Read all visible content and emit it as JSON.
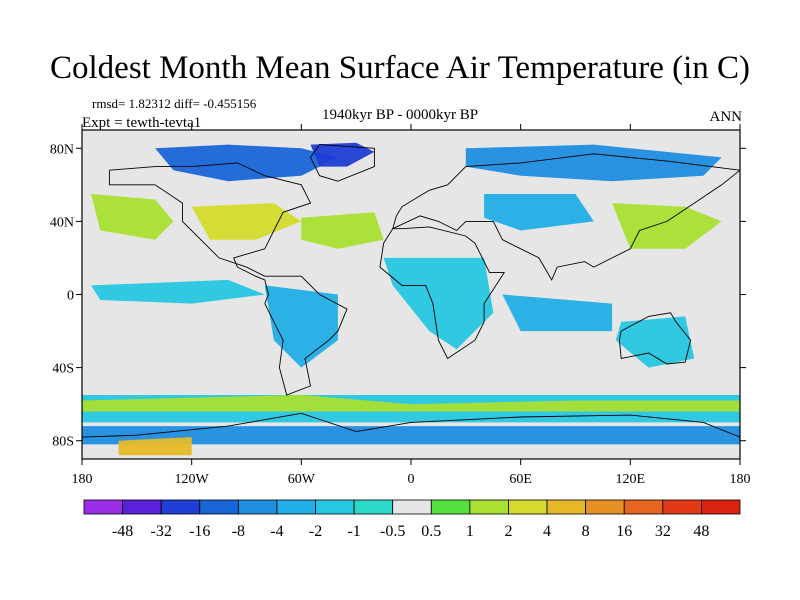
{
  "title": "Coldest Month Mean Surface Air Temperature (in C)",
  "stats": "rmsd= 1.82312 diff= -0.455156",
  "experiment": "Expt = tewth-tevta1",
  "period": "1940kyr BP - 0000kyr BP",
  "season": "ANN",
  "chart_data": {
    "type": "heatmap",
    "projection": "cylindrical-equidistant",
    "lon_range": [
      -180,
      180
    ],
    "lat_range": [
      -90,
      90
    ],
    "x_ticks": [
      "180",
      "120W",
      "60W",
      "0",
      "60E",
      "120E",
      "180"
    ],
    "y_ticks": [
      "80N",
      "40N",
      "0",
      "40S",
      "80S"
    ],
    "colorbar": {
      "labels": [
        "-48",
        "-32",
        "-16",
        "-8",
        "-4",
        "-2",
        "-1",
        "-0.5",
        "0.5",
        "1",
        "2",
        "4",
        "8",
        "16",
        "32",
        "48"
      ],
      "colors": [
        "#9a2ce6",
        "#5a21d9",
        "#1e3ed6",
        "#1966d8",
        "#1f8ee0",
        "#22aee6",
        "#27c6e2",
        "#2cd9c9",
        "#e6e6e6",
        "#55df3c",
        "#a9e032",
        "#d4db2c",
        "#e6b827",
        "#e69126",
        "#e6661f",
        "#e23a17",
        "#d9220f"
      ]
    }
  },
  "regions": [
    {
      "name": "arctic-canada-cold",
      "color": "#1966d8",
      "path": [
        [
          -140,
          80
        ],
        [
          -100,
          82
        ],
        [
          -60,
          80
        ],
        [
          -40,
          75
        ],
        [
          -60,
          65
        ],
        [
          -100,
          62
        ],
        [
          -130,
          68
        ]
      ]
    },
    {
      "name": "greenland-cold",
      "color": "#1e3ed6",
      "path": [
        [
          -55,
          82
        ],
        [
          -30,
          83
        ],
        [
          -20,
          78
        ],
        [
          -35,
          70
        ],
        [
          -50,
          70
        ]
      ]
    },
    {
      "name": "siberia-cool",
      "color": "#1f8ee0",
      "path": [
        [
          30,
          80
        ],
        [
          100,
          82
        ],
        [
          170,
          75
        ],
        [
          160,
          65
        ],
        [
          110,
          62
        ],
        [
          60,
          65
        ],
        [
          30,
          70
        ]
      ]
    },
    {
      "name": "pacific-north-warm",
      "color": "#a9e032",
      "path": [
        [
          -175,
          55
        ],
        [
          -140,
          52
        ],
        [
          -130,
          40
        ],
        [
          -140,
          30
        ],
        [
          -170,
          35
        ]
      ]
    },
    {
      "name": "north-america-warm",
      "color": "#d4db2c",
      "path": [
        [
          -120,
          48
        ],
        [
          -75,
          50
        ],
        [
          -60,
          40
        ],
        [
          -85,
          30
        ],
        [
          -110,
          30
        ]
      ]
    },
    {
      "name": "atlantic-warm",
      "color": "#a9e032",
      "path": [
        [
          -60,
          42
        ],
        [
          -20,
          45
        ],
        [
          -15,
          30
        ],
        [
          -40,
          25
        ],
        [
          -60,
          30
        ]
      ]
    },
    {
      "name": "asia-east-warm",
      "color": "#a9e032",
      "path": [
        [
          110,
          50
        ],
        [
          150,
          48
        ],
        [
          170,
          40
        ],
        [
          150,
          25
        ],
        [
          120,
          25
        ]
      ]
    },
    {
      "name": "central-asia-cool",
      "color": "#22aee6",
      "path": [
        [
          40,
          55
        ],
        [
          90,
          55
        ],
        [
          100,
          40
        ],
        [
          60,
          35
        ],
        [
          40,
          42
        ]
      ]
    },
    {
      "name": "tropical-pacific-cool",
      "color": "#27c6e2",
      "path": [
        [
          -175,
          5
        ],
        [
          -100,
          8
        ],
        [
          -80,
          0
        ],
        [
          -120,
          -5
        ],
        [
          -170,
          -3
        ]
      ]
    },
    {
      "name": "south-america-cool",
      "color": "#22aee6",
      "path": [
        [
          -80,
          5
        ],
        [
          -40,
          0
        ],
        [
          -40,
          -25
        ],
        [
          -60,
          -40
        ],
        [
          -75,
          -25
        ]
      ]
    },
    {
      "name": "africa-cool",
      "color": "#27c6e2",
      "path": [
        [
          -15,
          20
        ],
        [
          40,
          20
        ],
        [
          45,
          -10
        ],
        [
          25,
          -30
        ],
        [
          10,
          -20
        ],
        [
          -10,
          5
        ]
      ]
    },
    {
      "name": "indian-ocean-cool",
      "color": "#22aee6",
      "path": [
        [
          50,
          0
        ],
        [
          110,
          -5
        ],
        [
          110,
          -20
        ],
        [
          60,
          -20
        ]
      ]
    },
    {
      "name": "australia-cool",
      "color": "#27c6e2",
      "path": [
        [
          115,
          -15
        ],
        [
          150,
          -12
        ],
        [
          155,
          -35
        ],
        [
          130,
          -40
        ],
        [
          112,
          -25
        ]
      ]
    },
    {
      "name": "southern-ocean-band",
      "color": "#27c6e2",
      "path": [
        [
          -180,
          -55
        ],
        [
          180,
          -55
        ],
        [
          180,
          -70
        ],
        [
          -180,
          -70
        ]
      ]
    },
    {
      "name": "southern-ocean-warm",
      "color": "#a9e032",
      "path": [
        [
          -180,
          -58
        ],
        [
          -60,
          -55
        ],
        [
          0,
          -60
        ],
        [
          90,
          -58
        ],
        [
          180,
          -58
        ],
        [
          180,
          -64
        ],
        [
          -180,
          -64
        ]
      ]
    },
    {
      "name": "antarctica-cool",
      "color": "#1f8ee0",
      "path": [
        [
          -180,
          -72
        ],
        [
          180,
          -72
        ],
        [
          180,
          -82
        ],
        [
          -180,
          -82
        ]
      ]
    },
    {
      "name": "antarctica-warm",
      "color": "#e6b827",
      "path": [
        [
          -160,
          -80
        ],
        [
          -120,
          -78
        ],
        [
          -120,
          -88
        ],
        [
          -160,
          -88
        ]
      ]
    }
  ],
  "coastlines": [
    [
      [
        -165,
        68
      ],
      [
        -140,
        70
      ],
      [
        -120,
        70
      ],
      [
        -95,
        72
      ],
      [
        -80,
        65
      ],
      [
        -60,
        60
      ],
      [
        -55,
        50
      ],
      [
        -70,
        45
      ],
      [
        -75,
        35
      ],
      [
        -80,
        25
      ],
      [
        -97,
        20
      ],
      [
        -95,
        15
      ],
      [
        -85,
        10
      ],
      [
        -80,
        8
      ],
      [
        -78,
        0
      ],
      [
        -80,
        -5
      ],
      [
        -75,
        -15
      ],
      [
        -70,
        -25
      ],
      [
        -72,
        -40
      ],
      [
        -68,
        -55
      ],
      [
        -55,
        -50
      ],
      [
        -58,
        -35
      ],
      [
        -45,
        -25
      ],
      [
        -40,
        -20
      ],
      [
        -35,
        -8
      ],
      [
        -50,
        0
      ],
      [
        -60,
        10
      ],
      [
        -80,
        10
      ],
      [
        -90,
        15
      ],
      [
        -105,
        20
      ],
      [
        -115,
        30
      ],
      [
        -125,
        40
      ],
      [
        -125,
        50
      ],
      [
        -140,
        60
      ],
      [
        -165,
        60
      ],
      [
        -165,
        68
      ]
    ],
    [
      [
        -50,
        82
      ],
      [
        -20,
        80
      ],
      [
        -20,
        70
      ],
      [
        -40,
        62
      ],
      [
        -50,
        65
      ],
      [
        -55,
        75
      ],
      [
        -50,
        82
      ]
    ],
    [
      [
        -10,
        36
      ],
      [
        -5,
        36
      ],
      [
        10,
        37
      ],
      [
        30,
        32
      ],
      [
        35,
        28
      ],
      [
        43,
        12
      ],
      [
        51,
        12
      ],
      [
        40,
        -5
      ],
      [
        40,
        -15
      ],
      [
        35,
        -25
      ],
      [
        20,
        -35
      ],
      [
        15,
        -25
      ],
      [
        12,
        -5
      ],
      [
        8,
        5
      ],
      [
        -5,
        5
      ],
      [
        -17,
        15
      ],
      [
        -15,
        28
      ],
      [
        -10,
        36
      ]
    ],
    [
      [
        -10,
        36
      ],
      [
        -8,
        43
      ],
      [
        -5,
        48
      ],
      [
        5,
        54
      ],
      [
        10,
        57
      ],
      [
        20,
        60
      ],
      [
        30,
        70
      ],
      [
        60,
        72
      ],
      [
        100,
        77
      ],
      [
        140,
        73
      ],
      [
        180,
        68
      ],
      [
        170,
        60
      ],
      [
        155,
        50
      ],
      [
        140,
        40
      ],
      [
        125,
        35
      ],
      [
        120,
        25
      ],
      [
        110,
        20
      ],
      [
        100,
        15
      ],
      [
        95,
        18
      ],
      [
        80,
        15
      ],
      [
        77,
        8
      ],
      [
        70,
        20
      ],
      [
        60,
        25
      ],
      [
        50,
        30
      ],
      [
        45,
        40
      ],
      [
        30,
        40
      ],
      [
        25,
        35
      ],
      [
        15,
        40
      ],
      [
        5,
        43
      ],
      [
        -10,
        36
      ]
    ],
    [
      [
        115,
        -20
      ],
      [
        130,
        -12
      ],
      [
        142,
        -10
      ],
      [
        145,
        -15
      ],
      [
        153,
        -25
      ],
      [
        150,
        -37
      ],
      [
        140,
        -38
      ],
      [
        130,
        -32
      ],
      [
        115,
        -35
      ],
      [
        114,
        -25
      ],
      [
        115,
        -20
      ]
    ],
    [
      [
        -180,
        -78
      ],
      [
        -150,
        -77
      ],
      [
        -100,
        -72
      ],
      [
        -60,
        -65
      ],
      [
        -30,
        -75
      ],
      [
        0,
        -70
      ],
      [
        60,
        -67
      ],
      [
        120,
        -66
      ],
      [
        160,
        -70
      ],
      [
        180,
        -78
      ]
    ]
  ]
}
